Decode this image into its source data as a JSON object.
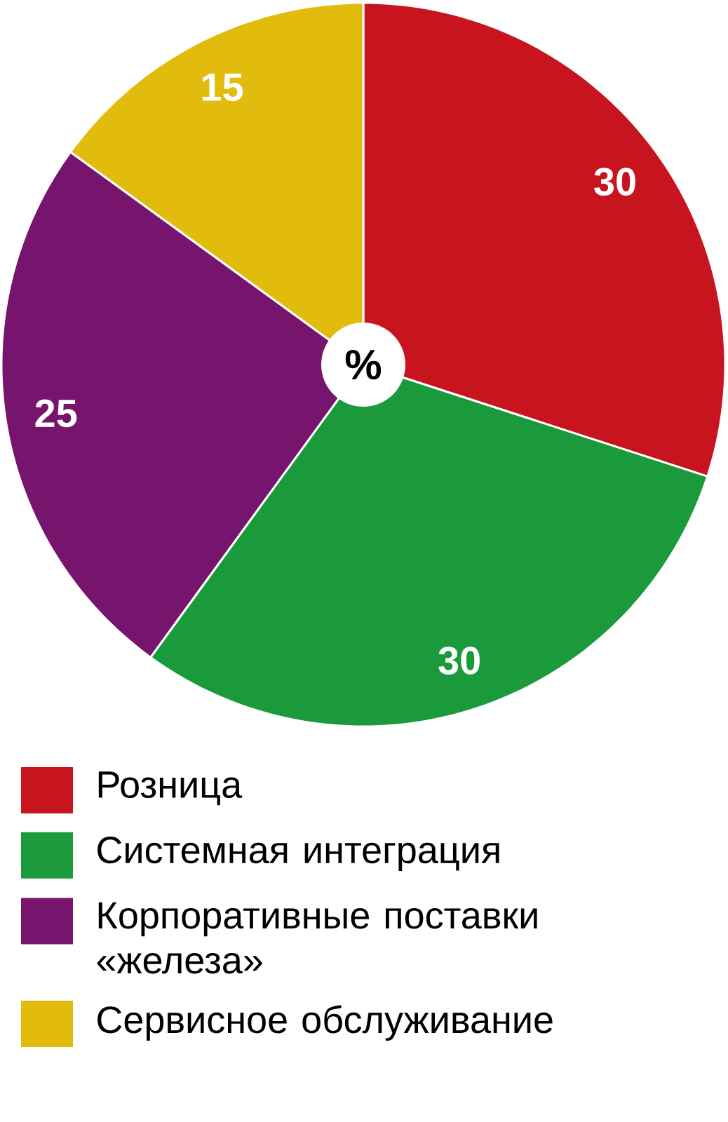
{
  "chart_data": {
    "type": "pie",
    "categories": [
      "Розница",
      "Системная интеграция",
      "Корпоративные поставки «железа»",
      "Сервисное обслуживание"
    ],
    "values": [
      30,
      30,
      25,
      15
    ],
    "colors": [
      "#c8141e",
      "#1a9a3a",
      "#76146e",
      "#e2bc0c"
    ],
    "data_labels": true,
    "annotations": [
      "%"
    ],
    "legend": "bottom"
  }
}
